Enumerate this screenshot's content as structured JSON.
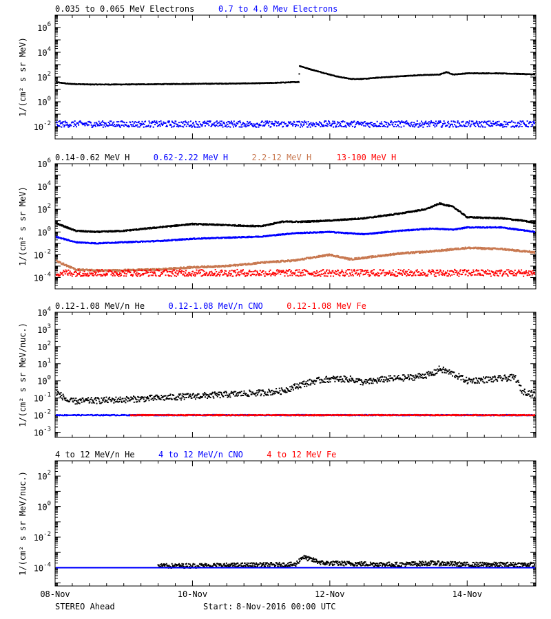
{
  "footer": {
    "left": "STEREO Ahead",
    "start_label": "Start:",
    "start_value": "8-Nov-2016 00:00 UTC"
  },
  "x_axis": {
    "domain_days": [
      0,
      7
    ],
    "ticks": [
      {
        "day": 0,
        "label": "08-Nov"
      },
      {
        "day": 2,
        "label": "10-Nov"
      },
      {
        "day": 4,
        "label": "12-Nov"
      },
      {
        "day": 6,
        "label": "14-Nov"
      }
    ]
  },
  "chart_data": [
    {
      "type": "scatter",
      "ylabel": "1/(cm² s sr MeV)",
      "yscale": "log",
      "ylim_exp": [
        -3,
        7
      ],
      "yticks_exp": [
        -2,
        0,
        2,
        4,
        6
      ],
      "legend": [
        {
          "text": "0.035 to 0.065 MeV Electrons",
          "color": "#000000"
        },
        {
          "text": "0.7 to 4.0 Mev Electrons",
          "color": "#0000ff"
        }
      ],
      "series": [
        {
          "name": "0.035 to 0.065 MeV Electrons",
          "color": "#000000",
          "style": "line",
          "jitter": 0.03,
          "points": [
            [
              0,
              1.6
            ],
            [
              0.2,
              1.45
            ],
            [
              0.5,
              1.4
            ],
            [
              1.0,
              1.4
            ],
            [
              1.5,
              1.42
            ],
            [
              2.0,
              1.45
            ],
            [
              2.5,
              1.47
            ],
            [
              3.0,
              1.5
            ],
            [
              3.3,
              1.55
            ],
            [
              3.55,
              1.6
            ],
            [
              3.56,
              2.9
            ],
            [
              3.7,
              2.65
            ],
            [
              3.9,
              2.35
            ],
            [
              4.1,
              2.05
            ],
            [
              4.3,
              1.85
            ],
            [
              4.5,
              1.85
            ],
            [
              4.7,
              1.95
            ],
            [
              5.0,
              2.05
            ],
            [
              5.3,
              2.15
            ],
            [
              5.6,
              2.2
            ],
            [
              5.7,
              2.4
            ],
            [
              5.8,
              2.2
            ],
            [
              6.0,
              2.3
            ],
            [
              6.4,
              2.3
            ],
            [
              6.8,
              2.25
            ],
            [
              7.0,
              2.2
            ]
          ]
        },
        {
          "name": "0.7 to 4.0 Mev Electrons",
          "color": "#0000ff",
          "style": "scatter",
          "jitter": 0.25,
          "points": [
            [
              0,
              -1.8
            ],
            [
              7,
              -1.8
            ]
          ]
        }
      ]
    },
    {
      "type": "scatter",
      "ylabel": "1/(cm² s sr MeV)",
      "yscale": "log",
      "ylim_exp": [
        -5,
        6
      ],
      "yticks_exp": [
        -4,
        -2,
        0,
        2,
        4,
        6
      ],
      "legend": [
        {
          "text": "0.14-0.62 MeV H",
          "color": "#000000"
        },
        {
          "text": "0.62-2.22 MeV H",
          "color": "#0000ff"
        },
        {
          "text": "2.2-12 MeV H",
          "color": "#c87850"
        },
        {
          "text": "13-100 MeV H",
          "color": "#ff0000"
        }
      ],
      "series": [
        {
          "name": "0.14-0.62 MeV H",
          "color": "#000000",
          "style": "line",
          "jitter": 0.06,
          "points": [
            [
              0,
              0.8
            ],
            [
              0.3,
              0.1
            ],
            [
              0.6,
              0.0
            ],
            [
              1.0,
              0.1
            ],
            [
              1.5,
              0.4
            ],
            [
              2.0,
              0.7
            ],
            [
              2.5,
              0.6
            ],
            [
              3.0,
              0.5
            ],
            [
              3.3,
              0.9
            ],
            [
              3.6,
              0.9
            ],
            [
              4.0,
              1.0
            ],
            [
              4.5,
              1.2
            ],
            [
              5.0,
              1.6
            ],
            [
              5.4,
              2.0
            ],
            [
              5.6,
              2.5
            ],
            [
              5.8,
              2.2
            ],
            [
              6.0,
              1.3
            ],
            [
              6.5,
              1.2
            ],
            [
              6.8,
              1.0
            ],
            [
              7.0,
              0.8
            ]
          ]
        },
        {
          "name": "0.62-2.22 MeV H",
          "color": "#0000ff",
          "style": "line",
          "jitter": 0.05,
          "points": [
            [
              0,
              -0.4
            ],
            [
              0.3,
              -0.9
            ],
            [
              0.6,
              -1.0
            ],
            [
              1.0,
              -0.9
            ],
            [
              1.5,
              -0.8
            ],
            [
              2.0,
              -0.6
            ],
            [
              2.5,
              -0.5
            ],
            [
              3.0,
              -0.4
            ],
            [
              3.5,
              -0.1
            ],
            [
              4.0,
              0.0
            ],
            [
              4.5,
              -0.2
            ],
            [
              5.0,
              0.1
            ],
            [
              5.5,
              0.3
            ],
            [
              5.8,
              0.2
            ],
            [
              6.0,
              0.4
            ],
            [
              6.5,
              0.4
            ],
            [
              7.0,
              0.0
            ]
          ]
        },
        {
          "name": "2.2-12 MeV H",
          "color": "#c87850",
          "style": "line",
          "jitter": 0.08,
          "points": [
            [
              0,
              -2.5
            ],
            [
              0.3,
              -3.3
            ],
            [
              0.7,
              -3.4
            ],
            [
              1.5,
              -3.3
            ],
            [
              2.0,
              -3.1
            ],
            [
              2.5,
              -3.0
            ],
            [
              3.0,
              -2.7
            ],
            [
              3.5,
              -2.5
            ],
            [
              4.0,
              -2.0
            ],
            [
              4.3,
              -2.4
            ],
            [
              4.6,
              -2.2
            ],
            [
              5.0,
              -1.9
            ],
            [
              5.5,
              -1.7
            ],
            [
              6.0,
              -1.4
            ],
            [
              6.5,
              -1.5
            ],
            [
              7.0,
              -1.8
            ]
          ]
        },
        {
          "name": "13-100 MeV H",
          "color": "#ff0000",
          "style": "scatter",
          "jitter": 0.3,
          "points": [
            [
              0,
              -3.6
            ],
            [
              7,
              -3.6
            ]
          ]
        }
      ]
    },
    {
      "type": "scatter",
      "ylabel": "1/(cm² s sr MeV/nuc.)",
      "yscale": "log",
      "ylim_exp": [
        -3.3,
        4
      ],
      "yticks_exp": [
        -3,
        -2,
        -1,
        0,
        1,
        2,
        3,
        4
      ],
      "legend": [
        {
          "text": "0.12-1.08 MeV/n He",
          "color": "#000000"
        },
        {
          "text": "0.12-1.08 MeV/n CNO",
          "color": "#0000ff"
        },
        {
          "text": "0.12-1.08 MeV Fe",
          "color": "#ff0000"
        }
      ],
      "series": [
        {
          "name": "0.12-1.08 MeV/n He",
          "color": "#000000",
          "style": "scatter",
          "jitter": 0.18,
          "points": [
            [
              0,
              -0.6
            ],
            [
              0.2,
              -1.2
            ],
            [
              1.0,
              -1.1
            ],
            [
              1.5,
              -1.0
            ],
            [
              2.0,
              -0.9
            ],
            [
              2.5,
              -0.8
            ],
            [
              3.0,
              -0.7
            ],
            [
              3.3,
              -0.6
            ],
            [
              3.6,
              -0.2
            ],
            [
              3.8,
              0.0
            ],
            [
              4.0,
              0.1
            ],
            [
              4.3,
              0.1
            ],
            [
              4.5,
              -0.1
            ],
            [
              4.8,
              0.1
            ],
            [
              5.2,
              0.2
            ],
            [
              5.5,
              0.4
            ],
            [
              5.6,
              0.7
            ],
            [
              5.8,
              0.4
            ],
            [
              6.0,
              0.0
            ],
            [
              6.4,
              0.1
            ],
            [
              6.7,
              0.2
            ],
            [
              6.8,
              -0.6
            ],
            [
              7.0,
              -0.8
            ]
          ]
        },
        {
          "name": "0.12-1.08 MeV/n CNO",
          "color": "#0000ff",
          "style": "scatter",
          "jitter": 0.03,
          "points": [
            [
              0,
              -2.0
            ],
            [
              7,
              -2.0
            ]
          ]
        },
        {
          "name": "0.12-1.08 MeV Fe",
          "color": "#ff0000",
          "style": "scatter",
          "jitter": 0.03,
          "points": [
            [
              1.1,
              -2.0
            ],
            [
              7,
              -2.0
            ]
          ]
        }
      ]
    },
    {
      "type": "scatter",
      "ylabel": "1/(cm² s sr MeV/nuc.)",
      "yscale": "log",
      "ylim_exp": [
        -5.2,
        3
      ],
      "yticks_exp": [
        -4,
        -2,
        0,
        2
      ],
      "legend": [
        {
          "text": "4 to 12 MeV/n He",
          "color": "#000000"
        },
        {
          "text": "4 to 12 MeV/n CNO",
          "color": "#0000ff"
        },
        {
          "text": "4 to 12 MeV Fe",
          "color": "#ff0000"
        }
      ],
      "series": [
        {
          "name": "4 to 12 MeV/n He",
          "color": "#000000",
          "style": "scatter",
          "jitter": 0.15,
          "points": [
            [
              1.5,
              -3.9
            ],
            [
              3.5,
              -3.8
            ],
            [
              3.6,
              -3.3
            ],
            [
              3.9,
              -3.7
            ],
            [
              5.0,
              -3.8
            ],
            [
              5.5,
              -3.7
            ],
            [
              6.0,
              -3.8
            ],
            [
              7.0,
              -3.8
            ]
          ]
        },
        {
          "name": "4 to 12 MeV/n CNO",
          "color": "#0000ff",
          "style": "scatter",
          "jitter": 0.0,
          "points": [
            [
              0,
              -4.0
            ],
            [
              7,
              -4.0
            ]
          ]
        }
      ]
    }
  ]
}
